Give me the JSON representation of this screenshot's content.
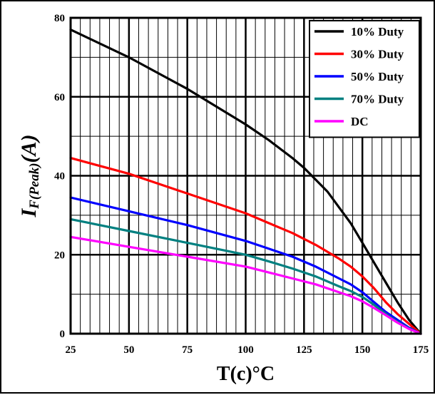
{
  "chart_data": {
    "type": "line",
    "xlabel": "T(c)°C",
    "ylabel_main": "I",
    "ylabel_sub": "F(Peak)",
    "ylabel_unit": "(A)",
    "xlim": [
      25,
      175
    ],
    "ylim": [
      0,
      80
    ],
    "x_ticks": [
      25,
      50,
      75,
      100,
      125,
      150,
      175
    ],
    "y_ticks": [
      0,
      20,
      40,
      60,
      80
    ],
    "grid": true,
    "legend_position": "top-right",
    "series": [
      {
        "name": "10% Duty",
        "color": "#000000",
        "x": [
          25,
          50,
          75,
          100,
          110,
          120,
          125,
          130,
          135,
          140,
          145,
          150,
          155,
          160,
          165,
          170,
          175
        ],
        "y": [
          77,
          70,
          62,
          53,
          49,
          44.5,
          42,
          39,
          36,
          32,
          28,
          23,
          18,
          13,
          8,
          3.5,
          0
        ]
      },
      {
        "name": "30% Duty",
        "color": "#ff0000",
        "x": [
          25,
          50,
          75,
          100,
          110,
          120,
          130,
          140,
          145,
          150,
          155,
          160,
          165,
          170,
          175
        ],
        "y": [
          44.5,
          40.5,
          35.5,
          30.5,
          28,
          25.5,
          22.5,
          19,
          17,
          14.5,
          11.5,
          8,
          5,
          2.5,
          0
        ]
      },
      {
        "name": "50% Duty",
        "color": "#0000ff",
        "x": [
          25,
          50,
          75,
          100,
          110,
          120,
          130,
          140,
          145,
          150,
          155,
          160,
          165,
          170,
          175
        ],
        "y": [
          34.5,
          31,
          27.5,
          23.5,
          21.5,
          19.5,
          17,
          14,
          12.5,
          10.5,
          8,
          5.5,
          3.5,
          1.5,
          0
        ]
      },
      {
        "name": "70% Duty",
        "color": "#008080",
        "x": [
          25,
          50,
          75,
          100,
          110,
          120,
          130,
          140,
          145,
          150,
          155,
          160,
          165,
          170,
          175
        ],
        "y": [
          29,
          26,
          23,
          20,
          18.3,
          16.5,
          14.5,
          12,
          10.8,
          9.3,
          7.3,
          5,
          3,
          1.3,
          0
        ]
      },
      {
        "name": "DC",
        "color": "#ff00ff",
        "x": [
          25,
          50,
          75,
          100,
          110,
          120,
          130,
          140,
          145,
          150,
          155,
          160,
          165,
          170,
          175
        ],
        "y": [
          24.5,
          22,
          19.5,
          17,
          15.5,
          14,
          12.5,
          10.5,
          9.5,
          8.2,
          6.5,
          4.7,
          2.8,
          1.2,
          0
        ]
      }
    ]
  }
}
